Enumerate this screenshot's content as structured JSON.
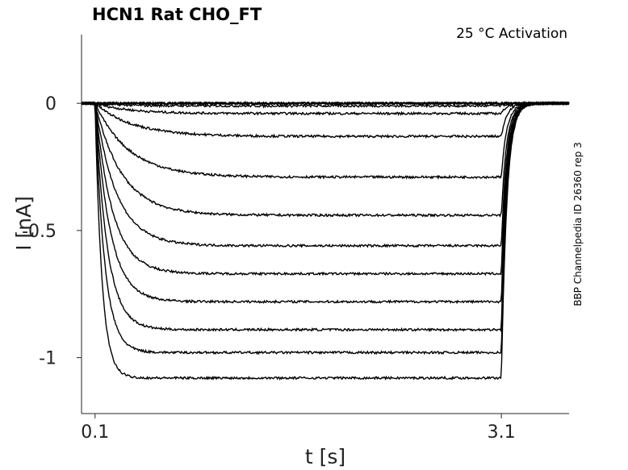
{
  "chart_data": {
    "type": "line",
    "title": "HCN1  Rat  CHO_FT",
    "annotation": "25 °C  Activation",
    "side_label": "BBP Channelpedia ID 26360 rep 3",
    "xlabel": "t [s]",
    "ylabel": "I [nA]",
    "xlim": [
      0.0,
      3.6
    ],
    "ylim": [
      -1.22,
      0.27
    ],
    "x_ticks": [
      0.1,
      3.1
    ],
    "x_tick_labels": [
      "0.1",
      "3.1"
    ],
    "y_ticks": [
      0,
      -0.5,
      -1
    ],
    "y_tick_labels": [
      "0",
      "-0.5",
      "-1"
    ],
    "stimulus_on": 0.1,
    "stimulus_off": 3.1,
    "tail_end": 3.6,
    "grid": false,
    "line_color": "#000000",
    "series": [
      {
        "steady": 0.0,
        "tau": 0.2
      },
      {
        "steady": 0.0,
        "tau": 0.2
      },
      {
        "steady": 0.0,
        "tau": 0.2
      },
      {
        "steady": -0.01,
        "tau": 0.2
      },
      {
        "steady": -0.04,
        "tau": 0.25
      },
      {
        "steady": -0.13,
        "tau": 0.28
      },
      {
        "steady": -0.29,
        "tau": 0.25
      },
      {
        "steady": -0.44,
        "tau": 0.2
      },
      {
        "steady": -0.56,
        "tau": 0.16
      },
      {
        "steady": -0.67,
        "tau": 0.13
      },
      {
        "steady": -0.78,
        "tau": 0.11
      },
      {
        "steady": -0.89,
        "tau": 0.09
      },
      {
        "steady": -0.98,
        "tau": 0.07
      },
      {
        "steady": -1.08,
        "tau": 0.05
      }
    ]
  }
}
